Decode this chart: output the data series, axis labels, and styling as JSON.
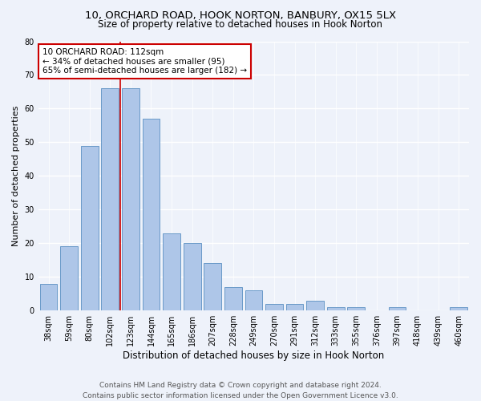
{
  "title1": "10, ORCHARD ROAD, HOOK NORTON, BANBURY, OX15 5LX",
  "title2": "Size of property relative to detached houses in Hook Norton",
  "xlabel": "Distribution of detached houses by size in Hook Norton",
  "ylabel": "Number of detached properties",
  "categories": [
    "38sqm",
    "59sqm",
    "80sqm",
    "102sqm",
    "123sqm",
    "144sqm",
    "165sqm",
    "186sqm",
    "207sqm",
    "228sqm",
    "249sqm",
    "270sqm",
    "291sqm",
    "312sqm",
    "333sqm",
    "355sqm",
    "376sqm",
    "397sqm",
    "418sqm",
    "439sqm",
    "460sqm"
  ],
  "values": [
    8,
    19,
    49,
    66,
    66,
    57,
    23,
    20,
    14,
    7,
    6,
    2,
    2,
    3,
    1,
    1,
    0,
    1,
    0,
    0,
    1
  ],
  "bar_color": "#aec6e8",
  "bar_edge_color": "#5a8fc2",
  "vline_x": 3.5,
  "vline_color": "#cc0000",
  "annotation_text": "10 ORCHARD ROAD: 112sqm\n← 34% of detached houses are smaller (95)\n65% of semi-detached houses are larger (182) →",
  "annotation_box_color": "#ffffff",
  "annotation_box_edge": "#cc0000",
  "ylim": [
    0,
    80
  ],
  "yticks": [
    0,
    10,
    20,
    30,
    40,
    50,
    60,
    70,
    80
  ],
  "footer_line1": "Contains HM Land Registry data © Crown copyright and database right 2024.",
  "footer_line2": "Contains public sector information licensed under the Open Government Licence v3.0.",
  "background_color": "#eef2fa",
  "grid_color": "#ffffff",
  "title1_fontsize": 9.5,
  "title2_fontsize": 8.5,
  "ylabel_fontsize": 8,
  "xlabel_fontsize": 8.5,
  "tick_fontsize": 7,
  "annotation_fontsize": 7.5,
  "footer_fontsize": 6.5
}
